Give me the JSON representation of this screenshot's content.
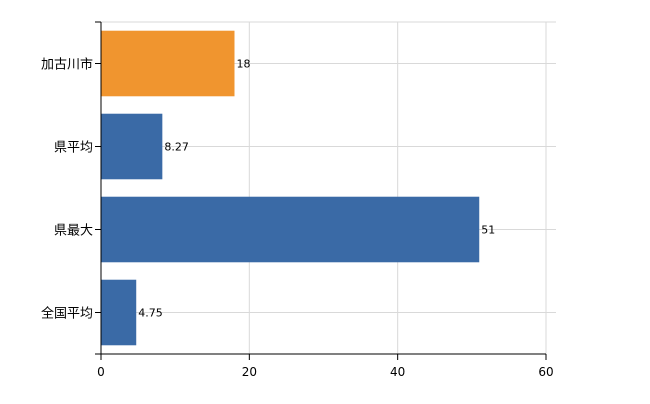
{
  "chart_data": {
    "type": "bar",
    "orientation": "horizontal",
    "categories": [
      "加古川市",
      "県平均",
      "県最大",
      "全国平均"
    ],
    "values": [
      18,
      8.27,
      51,
      4.75
    ],
    "value_labels": [
      "18",
      "8.27",
      "51",
      "4.75"
    ],
    "bar_colors": [
      "#f0952f",
      "#3a6aa6",
      "#3a6aa6",
      "#3a6aa6"
    ],
    "title": "",
    "xlabel": "",
    "ylabel": "",
    "xlim": [
      0,
      60
    ],
    "x_ticks": [
      0,
      20,
      40,
      60
    ],
    "x_tick_labels": [
      "0",
      "20",
      "40",
      "60"
    ],
    "grid": true,
    "grid_color": "#d9d9d9",
    "legend": "none"
  }
}
